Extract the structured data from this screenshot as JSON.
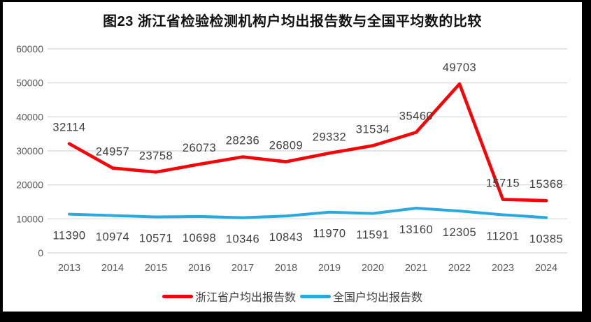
{
  "title": "图23  浙江省检验检测机构户均出报告数与全国平均数的比较",
  "chart_data": {
    "type": "line",
    "title": "图23  浙江省检验检测机构户均出报告数与全国平均数的比较",
    "x": [
      "2013",
      "2014",
      "2015",
      "2016",
      "2017",
      "2018",
      "2019",
      "2020",
      "2021",
      "2022",
      "2023",
      "2024"
    ],
    "series": [
      {
        "name": "浙江省户均出报告数",
        "color": "#f50508",
        "label_position": "above",
        "values": [
          32114,
          24957,
          23758,
          26073,
          28236,
          26809,
          29332,
          31534,
          35460,
          49703,
          15715,
          15368
        ]
      },
      {
        "name": "全国户均出报告数",
        "color": "#2aa9de",
        "label_position": "below",
        "values": [
          11390,
          10974,
          10571,
          10698,
          10346,
          10843,
          11970,
          11591,
          13160,
          12305,
          11201,
          10385
        ]
      }
    ],
    "xlabel": "",
    "ylabel": "",
    "ylim": [
      0,
      60000
    ],
    "y_ticks": [
      0,
      10000,
      20000,
      30000,
      40000,
      50000,
      60000
    ],
    "grid": "horizontal",
    "legend_position": "bottom",
    "style": {
      "gridline_color": "#dcdcdc",
      "axis_label_color": "#595959",
      "data_label_color": "#3f3f3f",
      "background": "#ffffff",
      "frame_color": "#000000"
    }
  }
}
